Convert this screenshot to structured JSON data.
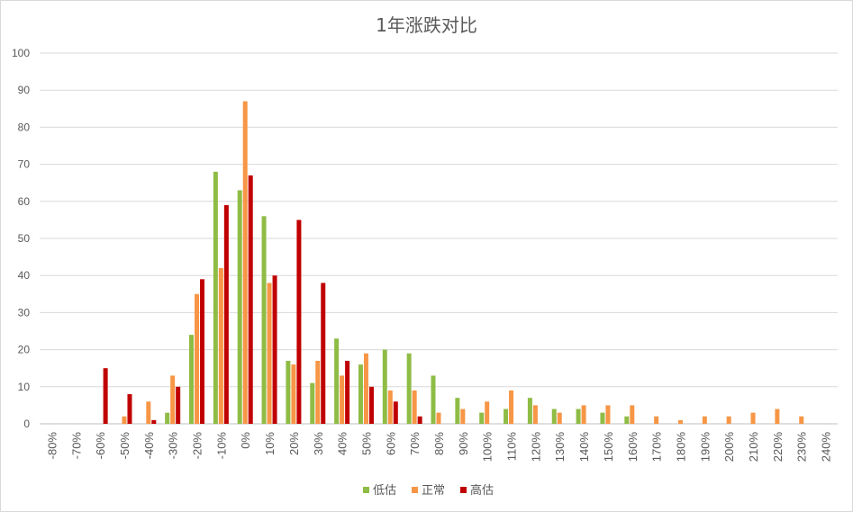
{
  "chart_data": {
    "type": "bar",
    "title": "1年涨跌对比",
    "xlabel": "",
    "ylabel": "",
    "ylim": [
      0,
      100
    ],
    "yticks": [
      0,
      10,
      20,
      30,
      40,
      50,
      60,
      70,
      80,
      90,
      100
    ],
    "grid": true,
    "legend_position": "bottom",
    "categories": [
      "-80%",
      "-70%",
      "-60%",
      "-50%",
      "-40%",
      "-30%",
      "-20%",
      "-10%",
      "0%",
      "10%",
      "20%",
      "30%",
      "40%",
      "50%",
      "60%",
      "70%",
      "80%",
      "90%",
      "100%",
      "110%",
      "120%",
      "130%",
      "140%",
      "150%",
      "160%",
      "170%",
      "180%",
      "190%",
      "200%",
      "210%",
      "220%",
      "230%",
      "240%"
    ],
    "series": [
      {
        "name": "低估",
        "color": "#8fbc45",
        "values": [
          0,
          0,
          0,
          0,
          0,
          3,
          24,
          68,
          63,
          56,
          17,
          11,
          23,
          16,
          20,
          19,
          13,
          7,
          3,
          4,
          7,
          4,
          4,
          3,
          2,
          0,
          0,
          0,
          0,
          0,
          0,
          0,
          0
        ]
      },
      {
        "name": "正常",
        "color": "#f79646",
        "values": [
          0,
          0,
          0,
          2,
          6,
          13,
          35,
          42,
          87,
          38,
          16,
          17,
          13,
          19,
          9,
          9,
          3,
          4,
          6,
          9,
          5,
          3,
          5,
          5,
          5,
          2,
          1,
          2,
          2,
          3,
          4,
          2,
          0
        ]
      },
      {
        "name": "高估",
        "color": "#c00000",
        "values": [
          0,
          0,
          15,
          8,
          1,
          10,
          39,
          59,
          67,
          40,
          55,
          38,
          17,
          10,
          6,
          2,
          0,
          0,
          0,
          0,
          0,
          0,
          0,
          0,
          0,
          0,
          0,
          0,
          0,
          0,
          0,
          0,
          0
        ]
      }
    ]
  }
}
